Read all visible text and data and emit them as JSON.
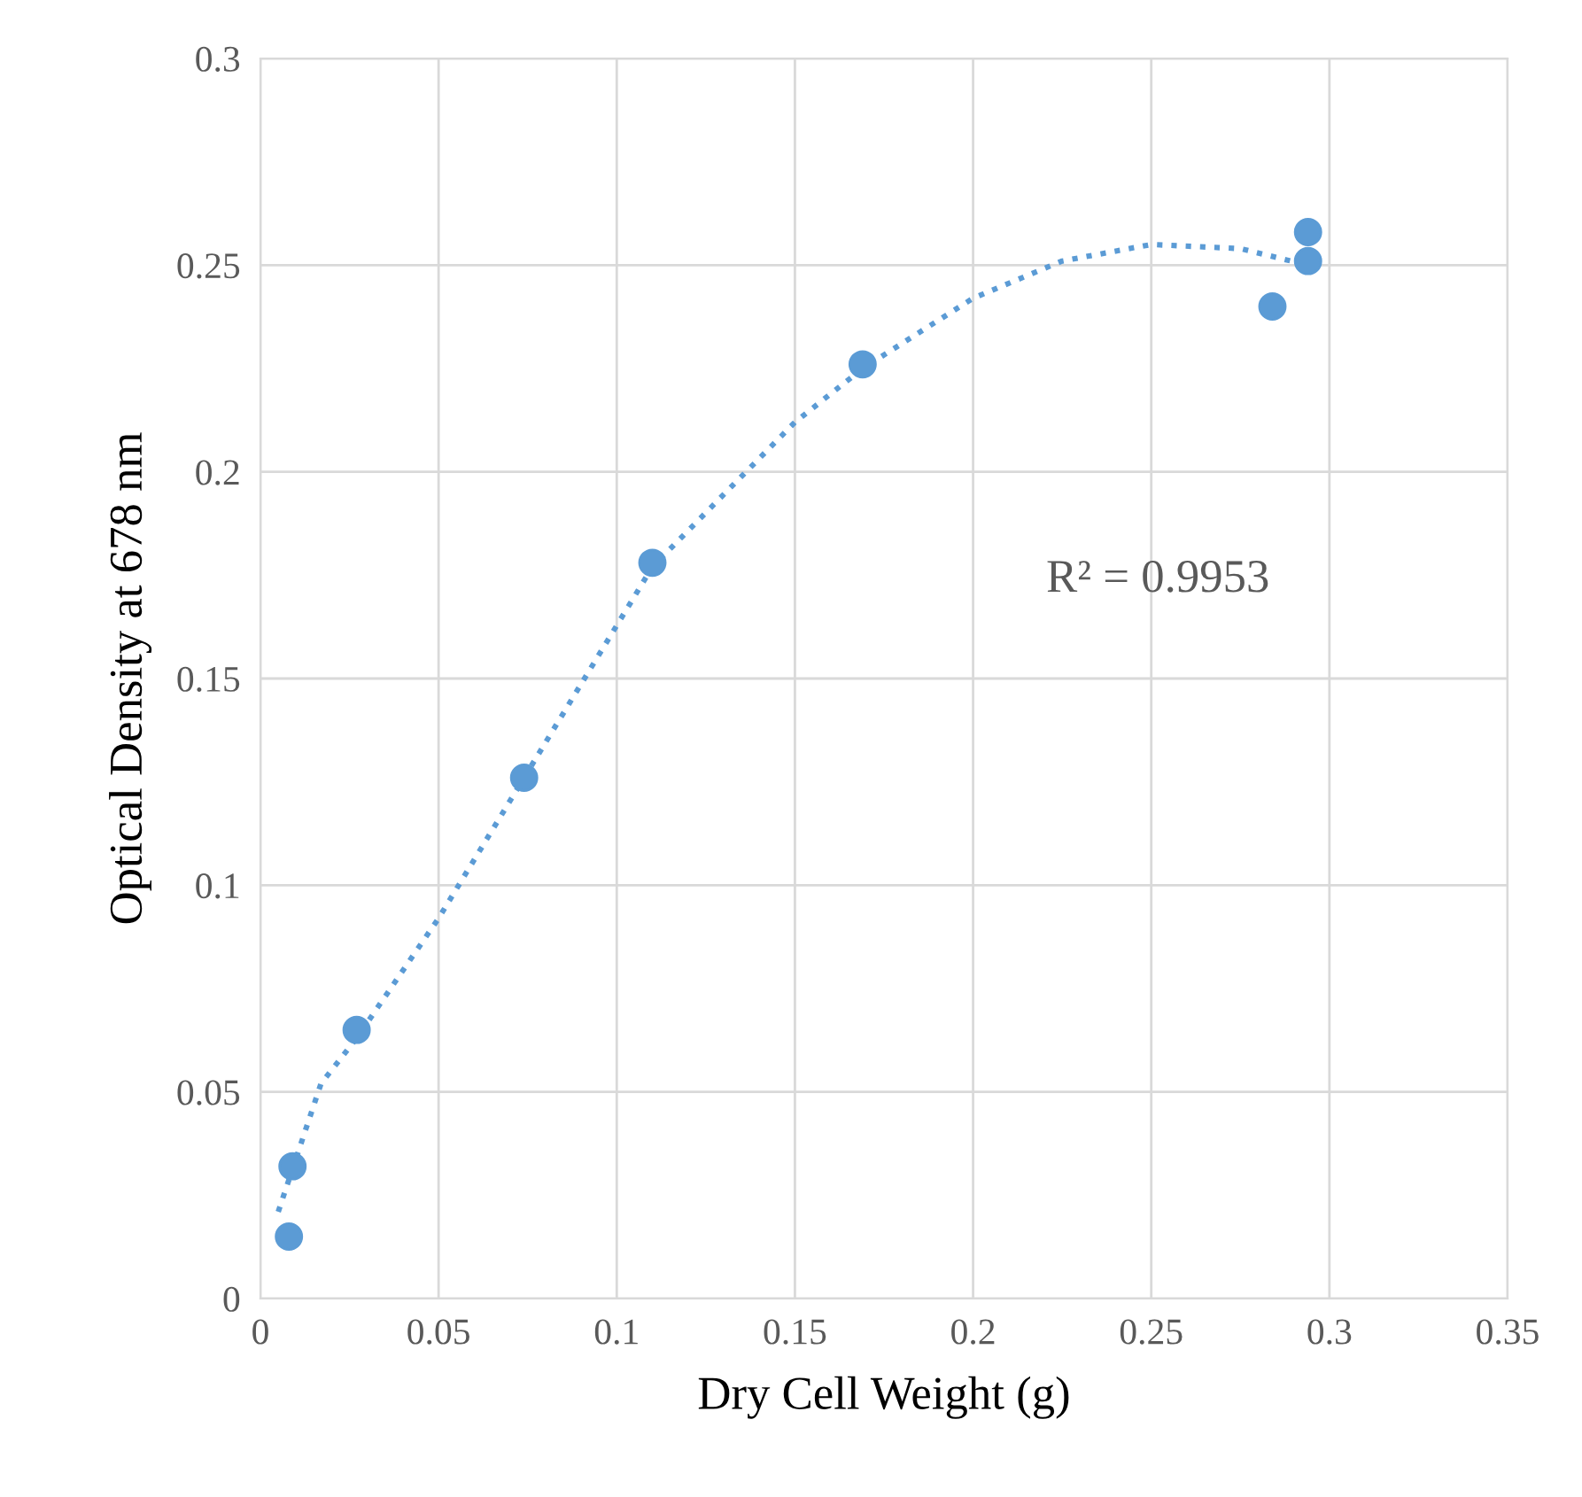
{
  "chart_data": {
    "type": "scatter",
    "xlabel": "Dry Cell Weight (g)",
    "ylabel": "Optical Density at 678 nm",
    "xlim": [
      0,
      0.35
    ],
    "xticks": [
      0,
      0.05,
      0.1,
      0.15,
      0.2,
      0.25,
      0.3,
      0.35
    ],
    "ylim": [
      0,
      0.3
    ],
    "yticks": [
      0,
      0.05,
      0.1,
      0.15,
      0.2,
      0.25,
      0.3
    ],
    "grid": true,
    "annotations": [
      "R² = 0.9953"
    ],
    "series": [
      {
        "color": "#5b9bd5",
        "marker": "circle",
        "x": [
          0.008,
          0.009,
          0.027,
          0.074,
          0.11,
          0.169,
          0.284,
          0.294,
          0.294
        ],
        "values": [
          0.015,
          0.032,
          0.065,
          0.126,
          0.178,
          0.226,
          0.24,
          0.258,
          0.251
        ]
      },
      {
        "type": "line",
        "color": "#5b9bd5",
        "line_style": "dotted",
        "x": [
          0.005,
          0.017,
          0.027,
          0.05,
          0.074,
          0.11,
          0.15,
          0.169,
          0.2,
          0.225,
          0.25,
          0.275,
          0.294
        ],
        "values": [
          0.021,
          0.052,
          0.063,
          0.092,
          0.126,
          0.177,
          0.212,
          0.225,
          0.242,
          0.251,
          0.255,
          0.254,
          0.25
        ]
      }
    ]
  }
}
